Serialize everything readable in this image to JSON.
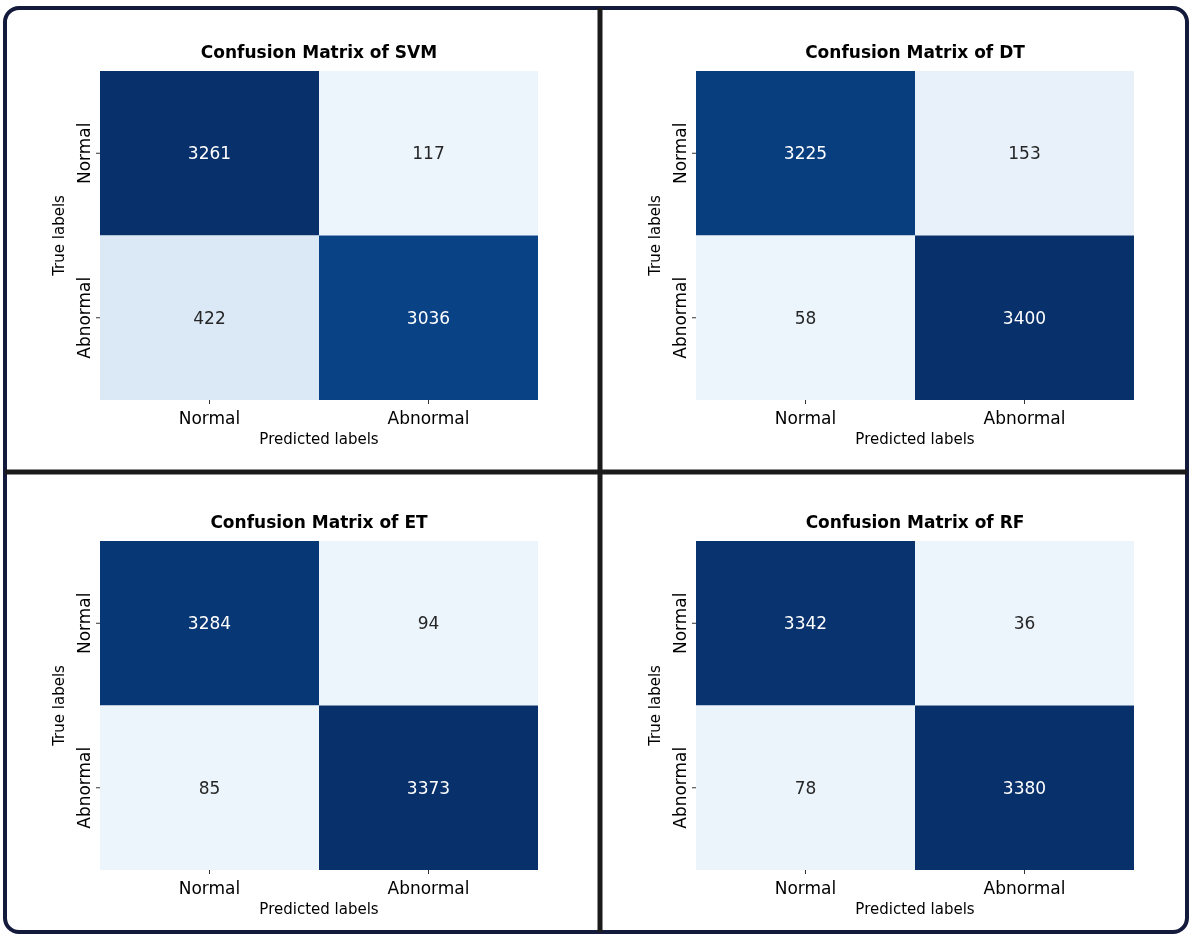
{
  "chart_data": [
    {
      "type": "heatmap",
      "title": "Confusion Matrix of SVM",
      "xlabel": "Predicted labels",
      "ylabel": "True labels",
      "categories": [
        "Normal",
        "Abnormal"
      ],
      "y_categories": [
        "Normal",
        "Abnormal"
      ],
      "cells": [
        [
          3261,
          117
        ],
        [
          422,
          3036
        ]
      ],
      "data_labels": true
    },
    {
      "type": "heatmap",
      "title": "Confusion Matrix of DT",
      "xlabel": "Predicted labels",
      "ylabel": "True labels",
      "categories": [
        "Normal",
        "Abnormal"
      ],
      "y_categories": [
        "Normal",
        "Abnormal"
      ],
      "cells": [
        [
          3225,
          153
        ],
        [
          58,
          3400
        ]
      ],
      "data_labels": true
    },
    {
      "type": "heatmap",
      "title": "Confusion Matrix of ET",
      "xlabel": "Predicted labels",
      "ylabel": "True labels",
      "categories": [
        "Normal",
        "Abnormal"
      ],
      "y_categories": [
        "Normal",
        "Abnormal"
      ],
      "cells": [
        [
          3284,
          94
        ],
        [
          85,
          3373
        ]
      ],
      "data_labels": true
    },
    {
      "type": "heatmap",
      "title": "Confusion Matrix of RF",
      "xlabel": "Predicted labels",
      "ylabel": "True labels",
      "categories": [
        "Normal",
        "Abnormal"
      ],
      "y_categories": [
        "Normal",
        "Abnormal"
      ],
      "cells": [
        [
          3342,
          36
        ],
        [
          78,
          3380
        ]
      ],
      "data_labels": true
    }
  ]
}
